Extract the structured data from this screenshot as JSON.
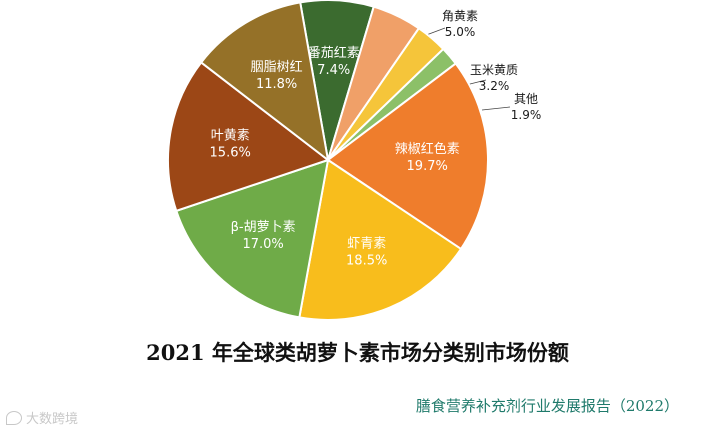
{
  "chart_data": {
    "type": "pie",
    "title": "2021 年全球类胡萝卜素市场分类别市场份额",
    "source": "膳食营养补充剂行业发展报告（2022）",
    "start_category": "番茄红素",
    "direction": "clockwise",
    "slices": [
      {
        "name": "番茄红素",
        "value": 7.4,
        "label": "7.4%",
        "color": "#3b6b2f",
        "label_pos": "inside"
      },
      {
        "name": "角黄素",
        "value": 5.0,
        "label": "5.0%",
        "color": "#f0a068",
        "label_pos": "outside"
      },
      {
        "name": "玉米黄质",
        "value": 3.2,
        "label": "3.2%",
        "color": "#f5c53a",
        "label_pos": "outside"
      },
      {
        "name": "其他",
        "value": 1.9,
        "label": "1.9%",
        "color": "#8cc068",
        "label_pos": "outside"
      },
      {
        "name": "辣椒红色素",
        "value": 19.7,
        "label": "19.7%",
        "color": "#ef7d2c",
        "label_pos": "inside"
      },
      {
        "name": "虾青素",
        "value": 18.5,
        "label": "18.5%",
        "color": "#f8bd1c",
        "label_pos": "inside"
      },
      {
        "name": "β-胡萝卜素",
        "value": 17.0,
        "label": "17.0%",
        "color": "#6fab48",
        "label_pos": "inside"
      },
      {
        "name": "叶黄素",
        "value": 15.6,
        "label": "15.6%",
        "color": "#9c4716",
        "label_pos": "inside"
      },
      {
        "name": "胭脂树红",
        "value": 11.8,
        "label": "11.8%",
        "color": "#957128",
        "label_pos": "inside"
      }
    ]
  },
  "watermark": {
    "text": "大数跨境"
  }
}
